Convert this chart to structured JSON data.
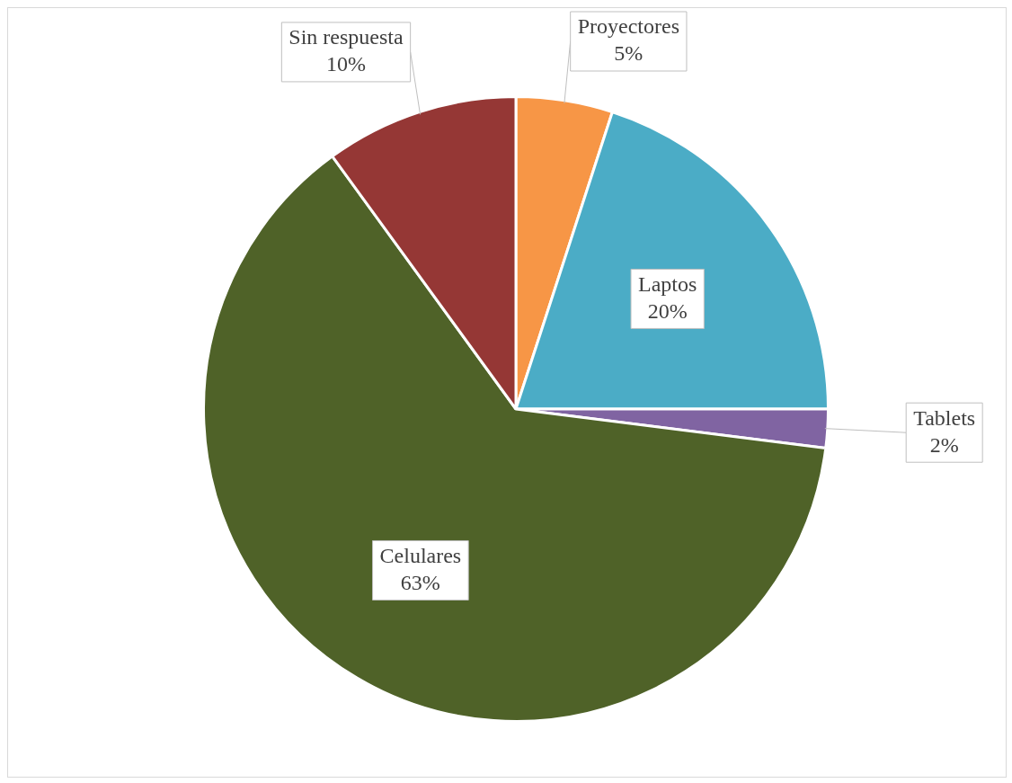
{
  "chart_data": {
    "type": "pie",
    "categories": [
      "Proyectores",
      "Laptos",
      "Tablets",
      "Celulares",
      "Sin respuesta"
    ],
    "values": [
      5,
      20,
      2,
      63,
      10
    ],
    "colors": [
      "#f79646",
      "#4bacc6",
      "#8064a2",
      "#4f6228",
      "#953735"
    ],
    "value_labels": [
      "5%",
      "20%",
      "2%",
      "63%",
      "10%"
    ],
    "legend": false
  }
}
